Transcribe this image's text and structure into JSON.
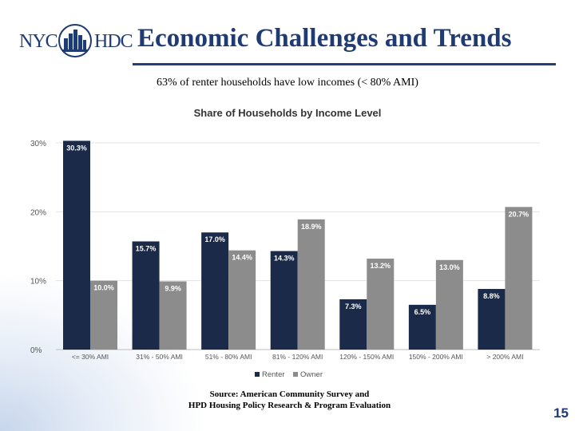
{
  "header": {
    "logo_left": "NYC",
    "logo_right": "HDC",
    "title": "Economic Challenges and Trends"
  },
  "subtitle": "63% of renter households have low incomes (< 80% AMI)",
  "chart_data": {
    "type": "bar",
    "title": "Share of Households by Income Level",
    "categories": [
      "<= 30% AMI",
      "31% - 50% AMI",
      "51% - 80% AMI",
      "81% - 120% AMI",
      "120% - 150% AMI",
      "150% - 200% AMI",
      "> 200% AMI"
    ],
    "series": [
      {
        "name": "Renter",
        "color": "#1b2a48",
        "values": [
          30.3,
          15.7,
          17.0,
          14.3,
          7.3,
          6.5,
          8.8
        ],
        "labels": [
          "30.3%",
          "15.7%",
          "17.0%",
          "14.3%",
          "7.3%",
          "6.5%",
          "8.8%"
        ]
      },
      {
        "name": "Owner",
        "color": "#8c8c8c",
        "values": [
          10.0,
          9.9,
          14.4,
          18.9,
          13.2,
          13.0,
          20.7
        ],
        "labels": [
          "10.0%",
          "9.9%",
          "14.4%",
          "18.9%",
          "13.2%",
          "13.0%",
          "20.7%"
        ]
      }
    ],
    "ylim": [
      0,
      30
    ],
    "yticks": [
      0,
      10,
      20,
      30
    ],
    "ytick_labels": [
      "0%",
      "10%",
      "20%",
      "30%"
    ],
    "gridlines": true,
    "legend_position": "bottom",
    "xlabel": "",
    "ylabel": ""
  },
  "source": {
    "line1": "Source: American Community Survey and",
    "line2": "HPD Housing Policy Research & Program Evaluation"
  },
  "page_number": "15"
}
